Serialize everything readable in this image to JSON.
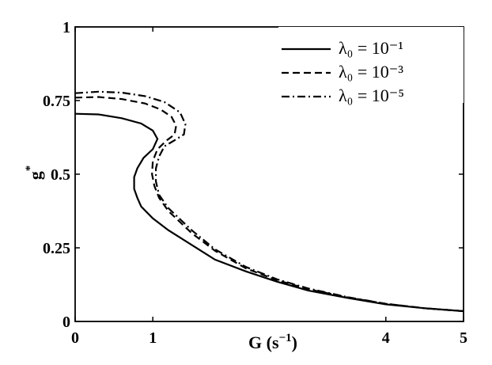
{
  "chart_data": {
    "type": "line",
    "xlabel": "G (s⁻¹)",
    "ylabel": "g*",
    "xlim": [
      0,
      5
    ],
    "ylim": [
      0,
      1
    ],
    "xticks": [
      {
        "value": 0,
        "label": "0"
      },
      {
        "value": 1,
        "label": "1"
      },
      {
        "value": 4,
        "label": "4"
      },
      {
        "value": 5,
        "label": "5"
      }
    ],
    "yticks": [
      {
        "value": 0,
        "label": "0"
      },
      {
        "value": 0.25,
        "label": "0.25"
      },
      {
        "value": 0.5,
        "label": "0.5"
      },
      {
        "value": 0.75,
        "label": "0.75"
      },
      {
        "value": 1,
        "label": "1"
      }
    ],
    "grid": false,
    "legend_position": "top-right",
    "series": [
      {
        "name": "λ₀ = 10⁻¹",
        "style": "solid",
        "color": "#000000",
        "points": [
          [
            0.0,
            0.705
          ],
          [
            0.3,
            0.703
          ],
          [
            0.6,
            0.69
          ],
          [
            0.85,
            0.672
          ],
          [
            1.0,
            0.648
          ],
          [
            1.06,
            0.62
          ],
          [
            1.0,
            0.585
          ],
          [
            0.88,
            0.555
          ],
          [
            0.8,
            0.52
          ],
          [
            0.76,
            0.49
          ],
          [
            0.76,
            0.45
          ],
          [
            0.8,
            0.42
          ],
          [
            0.85,
            0.39
          ],
          [
            1.0,
            0.35
          ],
          [
            1.2,
            0.31
          ],
          [
            1.5,
            0.26
          ],
          [
            1.8,
            0.21
          ],
          [
            2.2,
            0.17
          ],
          [
            2.6,
            0.135
          ],
          [
            3.0,
            0.105
          ],
          [
            3.5,
            0.08
          ],
          [
            4.0,
            0.058
          ],
          [
            4.5,
            0.045
          ],
          [
            5.0,
            0.035
          ]
        ]
      },
      {
        "name": "λ₀ = 10⁻³",
        "style": "dashed",
        "color": "#000000",
        "points": [
          [
            0.0,
            0.76
          ],
          [
            0.3,
            0.762
          ],
          [
            0.6,
            0.755
          ],
          [
            0.9,
            0.74
          ],
          [
            1.1,
            0.72
          ],
          [
            1.24,
            0.695
          ],
          [
            1.3,
            0.665
          ],
          [
            1.28,
            0.635
          ],
          [
            1.18,
            0.615
          ],
          [
            1.06,
            0.585
          ],
          [
            1.0,
            0.545
          ],
          [
            0.99,
            0.5
          ],
          [
            1.02,
            0.46
          ],
          [
            1.08,
            0.42
          ],
          [
            1.2,
            0.375
          ],
          [
            1.5,
            0.3
          ],
          [
            1.8,
            0.24
          ],
          [
            2.2,
            0.18
          ],
          [
            2.6,
            0.14
          ],
          [
            3.0,
            0.11
          ],
          [
            3.5,
            0.082
          ],
          [
            4.0,
            0.06
          ],
          [
            4.5,
            0.045
          ],
          [
            5.0,
            0.035
          ]
        ]
      },
      {
        "name": "λ₀ = 10⁻⁵",
        "style": "dashdot",
        "color": "#000000",
        "points": [
          [
            0.0,
            0.775
          ],
          [
            0.3,
            0.78
          ],
          [
            0.6,
            0.777
          ],
          [
            0.9,
            0.765
          ],
          [
            1.15,
            0.745
          ],
          [
            1.35,
            0.71
          ],
          [
            1.42,
            0.67
          ],
          [
            1.4,
            0.635
          ],
          [
            1.28,
            0.615
          ],
          [
            1.15,
            0.595
          ],
          [
            1.08,
            0.56
          ],
          [
            1.04,
            0.52
          ],
          [
            1.04,
            0.475
          ],
          [
            1.08,
            0.43
          ],
          [
            1.2,
            0.385
          ],
          [
            1.5,
            0.31
          ],
          [
            1.8,
            0.245
          ],
          [
            2.2,
            0.185
          ],
          [
            2.6,
            0.143
          ],
          [
            3.0,
            0.112
          ],
          [
            3.5,
            0.083
          ],
          [
            4.0,
            0.06
          ],
          [
            4.5,
            0.045
          ],
          [
            5.0,
            0.035
          ]
        ]
      }
    ]
  }
}
